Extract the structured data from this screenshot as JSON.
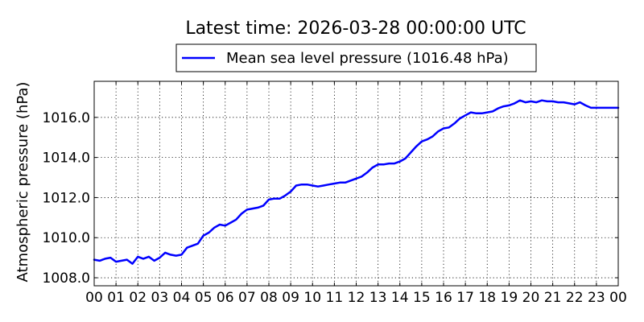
{
  "chart_data": {
    "type": "line",
    "title": "Latest time: 2026-03-28 00:00:00 UTC",
    "xlabel": "",
    "ylabel": "Atmospheric pressure (hPa)",
    "x_ticks": [
      "00",
      "01",
      "02",
      "03",
      "04",
      "05",
      "06",
      "07",
      "08",
      "09",
      "10",
      "11",
      "12",
      "13",
      "14",
      "15",
      "16",
      "17",
      "18",
      "19",
      "20",
      "21",
      "22",
      "23",
      "00"
    ],
    "xlim": [
      0,
      24
    ],
    "ylim": [
      1007.6,
      1017.8
    ],
    "y_ticks": [
      "1008.0",
      "1010.0",
      "1012.0",
      "1014.0",
      "1016.0"
    ],
    "y_tick_values": [
      1008,
      1010,
      1012,
      1014,
      1016
    ],
    "grid": true,
    "legend_position": "top-center",
    "series": [
      {
        "name": "Mean sea level pressure (1016.48 hPa)",
        "color": "#0000ff",
        "x": [
          0,
          0.25,
          0.5,
          0.75,
          1.0,
          1.25,
          1.5,
          1.75,
          2.0,
          2.25,
          2.5,
          2.75,
          3.0,
          3.25,
          3.5,
          3.75,
          4.0,
          4.25,
          4.5,
          4.75,
          5.0,
          5.25,
          5.5,
          5.75,
          6.0,
          6.25,
          6.5,
          6.75,
          7.0,
          7.25,
          7.5,
          7.75,
          8.0,
          8.25,
          8.5,
          8.75,
          9.0,
          9.25,
          9.5,
          9.75,
          10.0,
          10.25,
          10.5,
          10.75,
          11.0,
          11.25,
          11.5,
          11.75,
          12.0,
          12.25,
          12.5,
          12.75,
          13.0,
          13.25,
          13.5,
          13.75,
          14.0,
          14.25,
          14.5,
          14.75,
          15.0,
          15.25,
          15.5,
          15.75,
          16.0,
          16.25,
          16.5,
          16.75,
          17.0,
          17.25,
          17.5,
          17.75,
          18.0,
          18.25,
          18.5,
          18.75,
          19.0,
          19.25,
          19.5,
          19.75,
          20.0,
          20.25,
          20.5,
          20.75,
          21.0,
          21.25,
          21.5,
          21.75,
          22.0,
          22.25,
          22.5,
          22.75,
          23.0,
          23.25,
          23.5,
          23.75,
          24.0
        ],
        "values": [
          1008.9,
          1008.85,
          1008.95,
          1009.0,
          1008.8,
          1008.85,
          1008.9,
          1008.7,
          1009.05,
          1008.95,
          1009.05,
          1008.85,
          1009.0,
          1009.25,
          1009.15,
          1009.1,
          1009.15,
          1009.5,
          1009.6,
          1009.7,
          1010.1,
          1010.25,
          1010.5,
          1010.65,
          1010.6,
          1010.75,
          1010.9,
          1011.2,
          1011.4,
          1011.45,
          1011.5,
          1011.6,
          1011.9,
          1011.95,
          1011.95,
          1012.1,
          1012.3,
          1012.6,
          1012.65,
          1012.65,
          1012.6,
          1012.55,
          1012.6,
          1012.65,
          1012.7,
          1012.75,
          1012.75,
          1012.85,
          1012.95,
          1013.05,
          1013.25,
          1013.5,
          1013.65,
          1013.65,
          1013.7,
          1013.7,
          1013.8,
          1013.95,
          1014.25,
          1014.55,
          1014.8,
          1014.9,
          1015.05,
          1015.3,
          1015.45,
          1015.5,
          1015.7,
          1015.95,
          1016.1,
          1016.25,
          1016.2,
          1016.2,
          1016.25,
          1016.3,
          1016.45,
          1016.55,
          1016.6,
          1016.7,
          1016.85,
          1016.75,
          1016.8,
          1016.75,
          1016.85,
          1016.8,
          1016.8,
          1016.75,
          1016.75,
          1016.7,
          1016.65,
          1016.75,
          1016.6,
          1016.48,
          1016.48,
          1016.48,
          1016.48,
          1016.48,
          1016.48
        ]
      }
    ]
  }
}
